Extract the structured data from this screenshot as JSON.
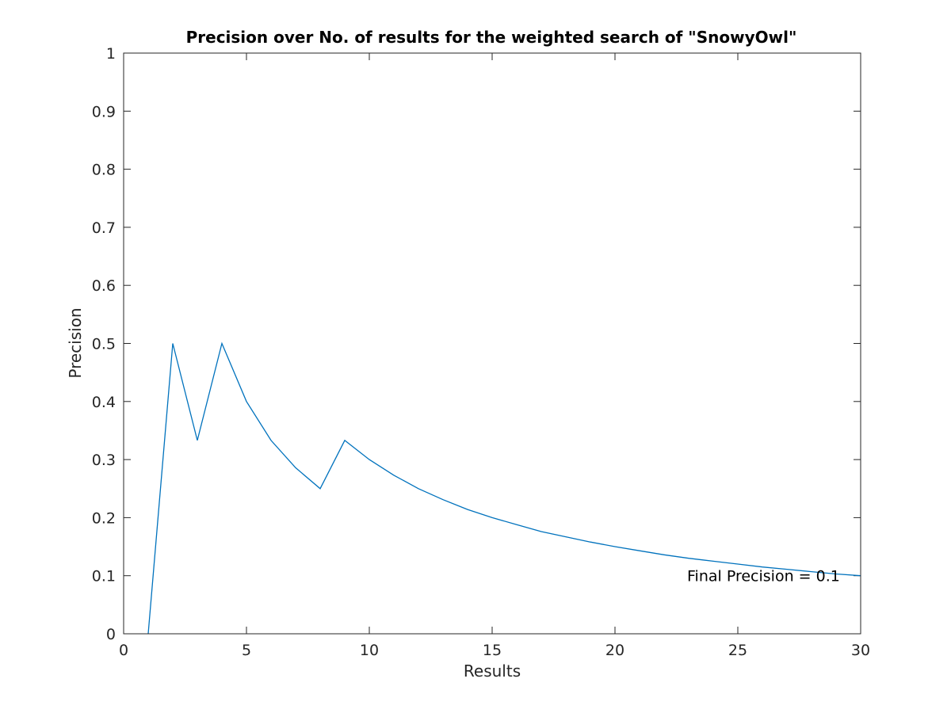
{
  "chart_data": {
    "type": "line",
    "title": "Precision over No. of results for the weighted search of \"SnowyOwl\"",
    "xlabel": "Results",
    "ylabel": "Precision",
    "xlim": [
      0,
      30
    ],
    "ylim": [
      0,
      1
    ],
    "xticks": [
      "0",
      "5",
      "10",
      "15",
      "20",
      "25",
      "30"
    ],
    "yticks": [
      "0",
      "0.1",
      "0.2",
      "0.3",
      "0.4",
      "0.5",
      "0.6",
      "0.7",
      "0.8",
      "0.9",
      "1"
    ],
    "grid": false,
    "series": [
      {
        "color": "#0072bd",
        "x": [
          1,
          2,
          3,
          4,
          5,
          6,
          7,
          8,
          9,
          10,
          11,
          12,
          13,
          14,
          15,
          16,
          17,
          18,
          19,
          20,
          21,
          22,
          23,
          24,
          25,
          26,
          27,
          28,
          29,
          30
        ],
        "y": [
          0,
          0.5,
          0.333,
          0.5,
          0.4,
          0.333,
          0.286,
          0.25,
          0.333,
          0.3,
          0.273,
          0.25,
          0.231,
          0.214,
          0.2,
          0.188,
          0.176,
          0.167,
          0.158,
          0.15,
          0.143,
          0.136,
          0.13,
          0.125,
          0.12,
          0.115,
          0.111,
          0.107,
          0.103,
          0.1
        ]
      }
    ],
    "annotations": [
      {
        "text": "Final Precision = 0.1",
        "x": 23,
        "y": 0.1
      }
    ]
  }
}
